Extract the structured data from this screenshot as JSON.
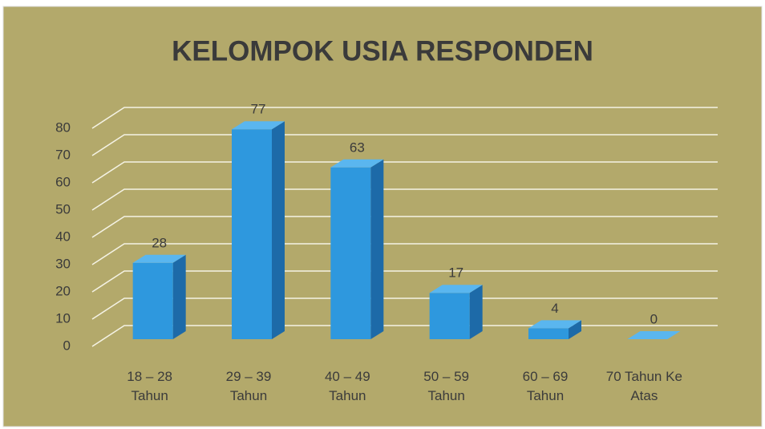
{
  "chart_data": {
    "type": "bar",
    "title": "KELOMPOK USIA RESPONDEN",
    "categories": [
      "18 – 28 Tahun",
      "29 – 39 Tahun",
      "40 – 49 Tahun",
      "50 – 59 Tahun",
      "60 – 69 Tahun",
      "70 Tahun Ke Atas"
    ],
    "values": [
      28,
      77,
      63,
      17,
      4,
      0
    ],
    "color": "#2e98de",
    "ylim": [
      0,
      80
    ],
    "yticks": [
      0,
      10,
      20,
      30,
      40,
      50,
      60,
      70,
      80
    ],
    "grid": true
  }
}
